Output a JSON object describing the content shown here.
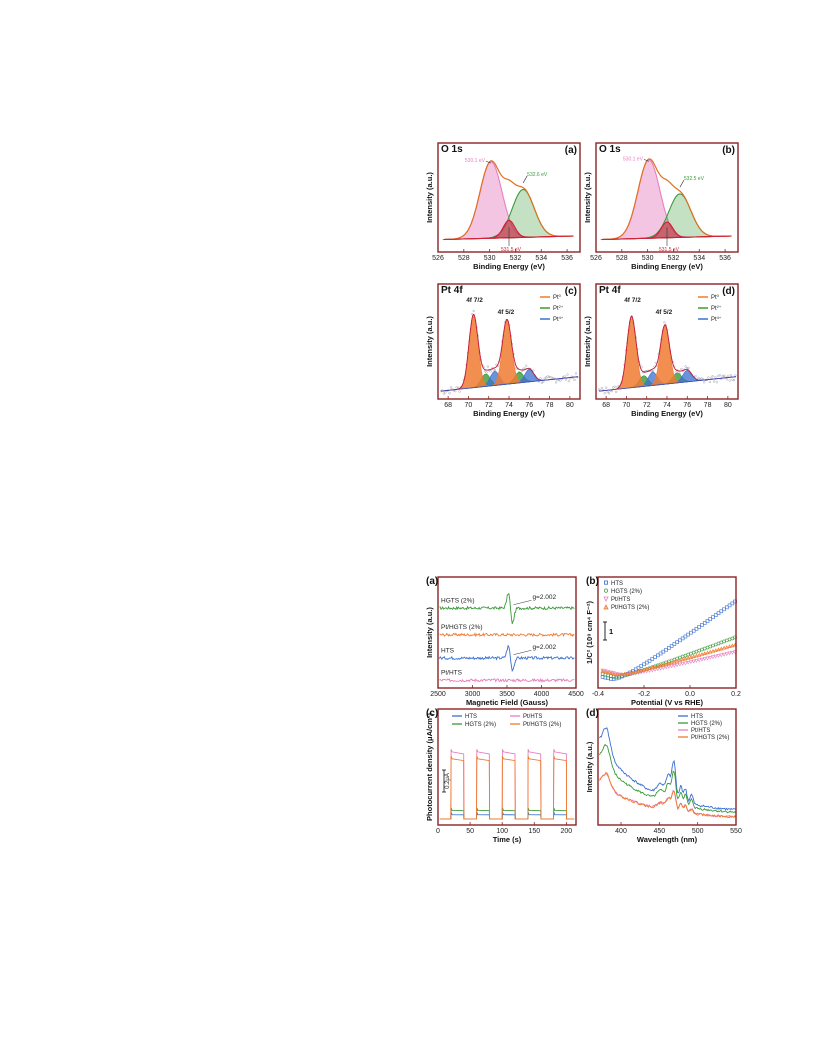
{
  "colors": {
    "frame": "#8b2323",
    "pink": "#e77fc0",
    "green": "#3a9a3a",
    "red": "#d0203a",
    "orange": "#f07a30",
    "blue": "#3a6fd0",
    "envelope": "#e07020",
    "raw": "#9090a0"
  },
  "chart_data": [
    {
      "id": "xps-o1s-a",
      "type": "line",
      "panel_label": "(a)",
      "corner_title": "O 1s",
      "xlabel": "Binding Energy (eV)",
      "ylabel": "Intensity (a.u.)",
      "xlim": [
        526,
        537
      ],
      "ticks": [
        "526",
        "528",
        "530",
        "532",
        "534",
        "536"
      ],
      "tick_values": [
        526,
        528,
        530,
        532,
        534,
        536
      ],
      "peaks": [
        {
          "center": 530.1,
          "label": "530.1 eV",
          "color": "pink",
          "height": 0.88
        },
        {
          "center": 532.6,
          "label": "532.6 eV",
          "color": "green",
          "height": 0.55
        },
        {
          "center": 531.5,
          "label": "531.5 eV",
          "color": "red",
          "height": 0.2
        }
      ]
    },
    {
      "id": "xps-o1s-b",
      "type": "line",
      "panel_label": "(b)",
      "corner_title": "O 1s",
      "xlabel": "Binding Energy (eV)",
      "ylabel": "Intensity (a.u.)",
      "xlim": [
        526,
        537
      ],
      "ticks": [
        "526",
        "528",
        "530",
        "532",
        "534",
        "536"
      ],
      "tick_values": [
        526,
        528,
        530,
        532,
        534,
        536
      ],
      "peaks": [
        {
          "center": 530.1,
          "label": "530.1 eV",
          "color": "pink",
          "height": 0.9
        },
        {
          "center": 532.5,
          "label": "532.5 eV",
          "color": "green",
          "height": 0.5
        },
        {
          "center": 531.5,
          "label": "531.5 eV",
          "color": "red",
          "height": 0.18
        }
      ]
    },
    {
      "id": "xps-pt4f-c",
      "type": "line",
      "panel_label": "(c)",
      "corner_title": "Pt 4f",
      "xlabel": "Binding Energy (eV)",
      "ylabel": "Intensity (a.u.)",
      "xlim": [
        67,
        81
      ],
      "ticks": [
        "68",
        "70",
        "72",
        "74",
        "76",
        "78",
        "80"
      ],
      "tick_values": [
        68,
        70,
        72,
        74,
        76,
        78,
        80
      ],
      "peak_titles": [
        "4f 7/2",
        "4f 5/2"
      ],
      "legend": [
        "Pt",
        "Pt",
        "Pt"
      ],
      "legend_sup": [
        "0",
        "2+",
        "4+"
      ],
      "legend_colors": [
        "orange",
        "green",
        "blue"
      ],
      "components": [
        {
          "center": 70.5,
          "color": "orange",
          "height": 0.82
        },
        {
          "center": 73.8,
          "color": "orange",
          "height": 0.72
        },
        {
          "center": 71.7,
          "color": "green",
          "height": 0.14
        },
        {
          "center": 75.0,
          "color": "green",
          "height": 0.12
        },
        {
          "center": 72.6,
          "color": "blue",
          "height": 0.16
        },
        {
          "center": 76.0,
          "color": "blue",
          "height": 0.14
        }
      ]
    },
    {
      "id": "xps-pt4f-d",
      "type": "line",
      "panel_label": "(d)",
      "corner_title": "Pt 4f",
      "xlabel": "Binding Energy (eV)",
      "ylabel": "Intensity (a.u.)",
      "xlim": [
        67,
        81
      ],
      "ticks": [
        "68",
        "70",
        "72",
        "74",
        "76",
        "78",
        "80"
      ],
      "tick_values": [
        68,
        70,
        72,
        74,
        76,
        78,
        80
      ],
      "peak_titles": [
        "4f 7/2",
        "4f 5/2"
      ],
      "legend": [
        "Pt",
        "Pt",
        "Pt"
      ],
      "legend_sup": [
        "0",
        "2+",
        "4+"
      ],
      "legend_colors": [
        "orange",
        "green",
        "blue"
      ],
      "components": [
        {
          "center": 70.5,
          "color": "orange",
          "height": 0.8
        },
        {
          "center": 73.8,
          "color": "orange",
          "height": 0.66
        },
        {
          "center": 71.7,
          "color": "green",
          "height": 0.12
        },
        {
          "center": 75.0,
          "color": "green",
          "height": 0.11
        },
        {
          "center": 72.6,
          "color": "blue",
          "height": 0.15
        },
        {
          "center": 76.0,
          "color": "blue",
          "height": 0.13
        }
      ]
    },
    {
      "id": "epr-a",
      "type": "line",
      "panel_label": "(a)",
      "xlabel": "Magnetic Field (Gauss)",
      "ylabel": "Intensity (a.u.)",
      "xlim": [
        2500,
        4500
      ],
      "ticks": [
        "2500",
        "3000",
        "3500",
        "4000",
        "4500"
      ],
      "tick_values": [
        2500,
        3000,
        3500,
        4000,
        4500
      ],
      "series": [
        {
          "name": "HGTS (2%)",
          "color": "green",
          "offset": 0.72,
          "signal_amp": 0.14,
          "g_label": "g=2.002"
        },
        {
          "name": "Pt/HGTS (2%)",
          "color": "orange",
          "offset": 0.48,
          "signal_amp": 0
        },
        {
          "name": "HTS",
          "color": "blue",
          "offset": 0.27,
          "signal_amp": 0.11,
          "g_label": "g=2.002"
        },
        {
          "name": "Pt/HTS",
          "color": "pink",
          "offset": 0.07,
          "signal_amp": 0
        }
      ],
      "signal_center": 3550
    },
    {
      "id": "mott-schottky-b",
      "type": "scatter",
      "panel_label": "(b)",
      "xlabel": "Potential (V vs RHE)",
      "ylabel": "1/C² (10⁹ cm⁴ F⁻²)",
      "xlim": [
        -0.4,
        0.2
      ],
      "ticks": [
        "-0.4",
        "-0.2",
        "0.0",
        "0.2"
      ],
      "tick_values": [
        -0.4,
        -0.2,
        0.0,
        0.2
      ],
      "scale_bar_label": "1",
      "series": [
        {
          "name": "HTS",
          "color": "blue",
          "marker": "square",
          "base": 0.08,
          "slope": 1.5,
          "onset": -0.34
        },
        {
          "name": "HGTS (2%)",
          "color": "green",
          "marker": "circle",
          "base": 0.1,
          "slope": 0.78,
          "onset": -0.33
        },
        {
          "name": "Pt/HTS",
          "color": "pink",
          "marker": "triangle-down",
          "base": 0.12,
          "slope": 0.48,
          "onset": -0.3
        },
        {
          "name": "Pt/HGTS (2%)",
          "color": "orange",
          "marker": "triangle-up",
          "base": 0.12,
          "slope": 0.6,
          "onset": -0.32
        }
      ]
    },
    {
      "id": "photocurrent-c",
      "type": "line",
      "panel_label": "(c)",
      "xlabel": "Time (s)",
      "ylabel": "Photocurrent density (μA/cm²)",
      "xlim": [
        0,
        215
      ],
      "ticks": [
        "0",
        "50",
        "100",
        "150",
        "200"
      ],
      "tick_values": [
        0,
        50,
        100,
        150,
        200
      ],
      "scale_bar_label": "0.2μA",
      "on_periods": [
        [
          20,
          40
        ],
        [
          60,
          80
        ],
        [
          100,
          120
        ],
        [
          140,
          160
        ],
        [
          180,
          200
        ]
      ],
      "series": [
        {
          "name": "HTS",
          "color": "blue",
          "on_level": 0.05
        },
        {
          "name": "Pt/HTS",
          "color": "pink",
          "on_level": 0.78
        },
        {
          "name": "HGTS (2%)",
          "color": "green",
          "on_level": 0.1
        },
        {
          "name": "Pt/HGTS (2%)",
          "color": "orange",
          "on_level": 0.7
        }
      ]
    },
    {
      "id": "pl-d",
      "type": "line",
      "panel_label": "(d)",
      "xlabel": "Wavelength (nm)",
      "ylabel": "Intensity (a.u.)",
      "xlim": [
        370,
        550
      ],
      "ticks": [
        "400",
        "450",
        "500",
        "550"
      ],
      "tick_values": [
        400,
        450,
        500,
        550
      ],
      "series": [
        {
          "name": "HTS",
          "color": "blue",
          "scale": 1.0,
          "base": 0.62
        },
        {
          "name": "HGTS (2%)",
          "color": "green",
          "scale": 0.85,
          "base": 0.5
        },
        {
          "name": "Pt/HTS",
          "color": "pink",
          "scale": 0.55,
          "base": 0.32
        },
        {
          "name": "Pt/HGTS (2%)",
          "color": "orange",
          "scale": 0.55,
          "base": 0.32
        }
      ]
    }
  ]
}
